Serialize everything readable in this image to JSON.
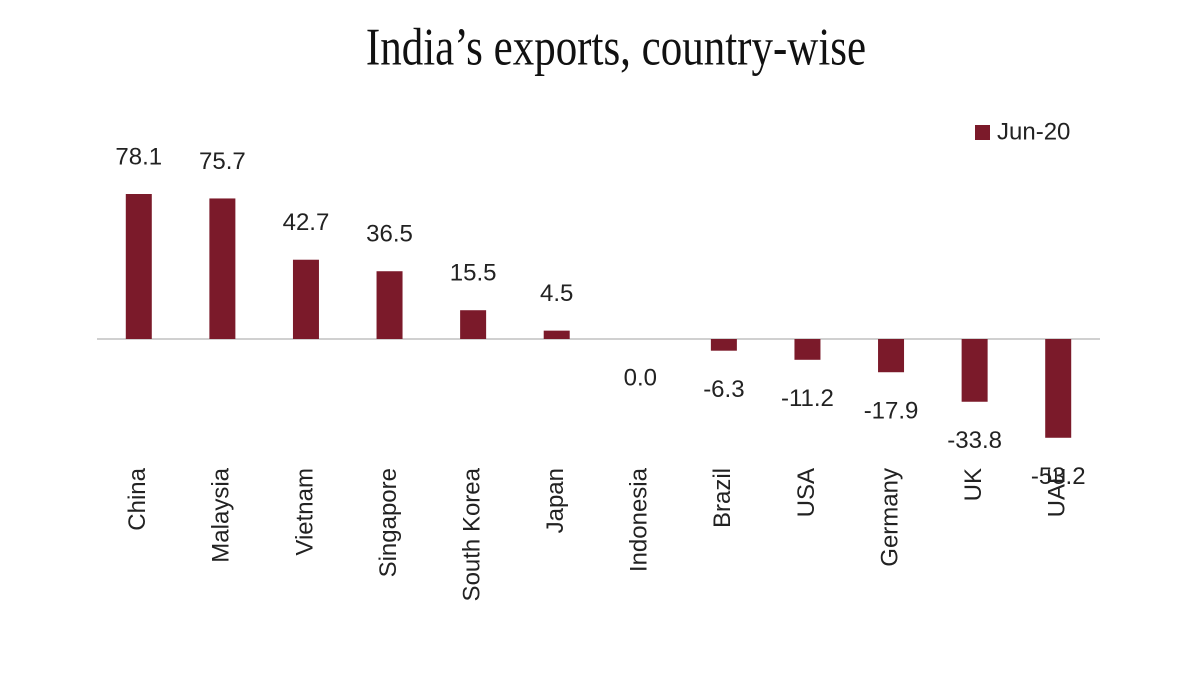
{
  "chart_data": {
    "type": "bar",
    "title": "India’s exports, country-wise",
    "categories": [
      "China",
      "Malaysia",
      "Vietnam",
      "Singapore",
      "South Korea",
      "Japan",
      "Indonesia",
      "Brazil",
      "USA",
      "Germany",
      "UK",
      "UAE"
    ],
    "series": [
      {
        "name": "Jun-20",
        "color": "#7b1a2a",
        "values": [
          78.1,
          75.7,
          42.7,
          36.5,
          15.5,
          4.5,
          0.0,
          -6.3,
          -11.2,
          -17.9,
          -33.8,
          -53.2
        ],
        "value_labels": [
          "78.1",
          "75.7",
          "42.7",
          "36.5",
          "15.5",
          "4.5",
          "0.0",
          "-6.3",
          "-11.2",
          "-17.9",
          "-33.8",
          "-53.2"
        ]
      }
    ],
    "legend": "top-right"
  }
}
